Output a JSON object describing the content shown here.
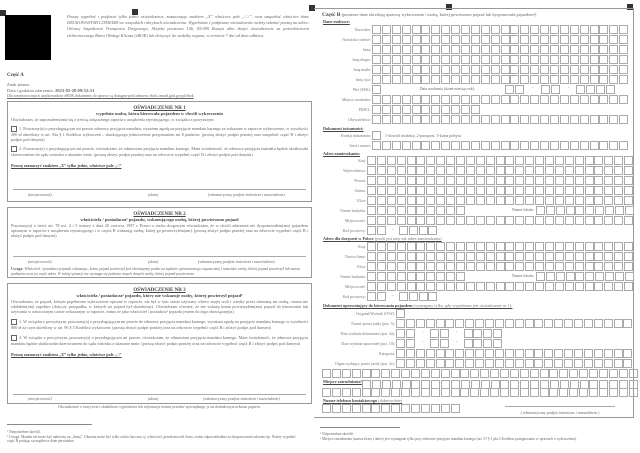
{
  "left": {
    "intro": "Proszę wypełnić i podpisać tylko jedno oświadczenie, zaznaczając znakiem „X” właściwe pole „□”, oraz uzupełnić właściwe dane DRUKOWANYMI LITERAMI we wszystkich rubrykach oświadczenia. Wypełnione i podpisane oświadczenie należy odesłać pocztą na adres: Główny Inspektorat Transportu Drogowego, Skrytka pocztowa 146, 05-090 Raszyn albo złożyć oświadczenie za pośrednictwem elektronicznego Biura Obsługi Klienta (eBOK) lub doręczyć do siedziby organu, w terminie 7 dni od dnia odbioru.",
    "part_a": "Część A",
    "znak_label": "Znak pisma:",
    "date_label": "Data i godzina zdarzenia:",
    "date_value": "2023-02-28 09:52:31",
    "ebok_note": "Dla zarejestrowanych użytkowników eBOK dokumenty do sprawy są dostępne pod adresem: ebok.canard.gitd.gov.pl/ebok",
    "s1": {
      "title": "OŚWIADCZENIE NR 1",
      "subtitle": "wypełnia osoba, która kierowała pojazdem w chwili wykroczenia",
      "intro": "Oświadczam, że zapoznałem(am) się z treścią załączonego raportu z urządzenia rejestrującego, w związku z powyższym:",
      "opt1": "1. Pouczony(a) o przysługującym mi prawie odmowy przyjęcia mandatu, wyrażam zgodę na przyjęcie mandatu karnego za wskazane w raporcie wykroczenie, w wysokości 200 zł określony w art. 92a § 1 Kodeksu wykroczeń – skutkującego jednocześnie przypisaniem mi 8 punktów. (proszę złożyć podpis poniżej oraz uzupełnić część B i złożyć podpis pod danymi)",
      "opt2": "2. Pouczony(a) o przysługującym mi prawie, oświadczam, że odmawiam przyjęcia mandatu karnego. Mam świadomość, że odmowa przyjęcia mandatu będzie skutkowała skierowaniem do sądu wniosku o ukaranie mnie. (proszę złożyć podpis poniżej oraz na odwrocie wypełnić część B i złożyć podpis pod danymi)",
      "mark_note": "Proszę zaznaczyć znakiem „X” tylko jedno, właściwe pole „□”",
      "sig": [
        "(miejscowość)",
        "(data)",
        "(własnoręczny podpis imieniem i nazwiskiem)"
      ]
    },
    "s2": {
      "title": "OŚWIADCZENIE NR 2",
      "subtitle": "właściciela / posiadacza¹ pojazdu, wskazującego osobę, której powierzono pojazd",
      "text": "Pouczony(a) o treści art. 78 ust. 4 i 5 ustawy z dnia 20 czerwca 1997 r. Prawo o ruchu drogowym oświadczam, że w chwili zdarzenia nie dysponowałem(am) pojazdem opisanym w raporcie z urządzenia rejestrującego i w części B wskazuję osobę, której go powierzyłem(am). (proszę złożyć podpis poniżej oraz na odwrocie wypełnić część B i złożyć podpis pod danymi)",
      "sig": [
        "(miejscowość)",
        "(data)",
        "(własnoręczny podpis imieniem i nazwiskiem)"
      ],
      "warning_label": "Uwaga:",
      "warning": "Właściciel / posiadacz pojazdu wskazując, komu pojazd powierzył jest obowiązany podać na żądanie uprawnionego organu imię i nazwisko osoby, której pojazd powierzył lub nazwę podmiotu oraz jej część adres. W takiej sytuacji nie wymaga się podania innych danych osoby, której pojazd powierzono."
    },
    "s3": {
      "title": "OŚWIADCZENIE NR 3",
      "subtitle": "właściciela / posiadacza¹ pojazdu, który nie wskazuje osoby, której powierzył pojazd²",
      "text": "Oświadczam, że pojazd, którym popełniono wykroczenie opisane w raporcie, nie był w tym czasie używany wbrew mojej woli i wiedzy przez nieznaną mi osobę, czemu nie zdołałem(am) zapobiec (dotyczy przypadku, w których na pojazd był skradziony). Oświadczam również, że nie wskażę komu powierzyłem(am) pojazd do kierowania lub używania w oznaczonym czasie wskazanym w raporcie, mimo że jako właściciel / posiadacz¹ pojazdu jestem do tego obowiązany(a).",
      "opt1": "1. W związku z powyższym, pouczony(a) o przysługującym mi prawie do odmowy przyjęcia mandatu karnego, wyrażam zgodę na przyjęcie mandatu karnego w wysokości 800 zł za czyn określony w art. 96 § 3 Kodeksu wykroczeń. (proszę złożyć podpis poniżej oraz na odwrocie wypełnić część B i złożyć podpis pod danymi)",
      "opt2": "2. W związku z powyższym, pouczony(a) o przysługującym mi prawie, oświadczam, że odmawiam przyjęcia mandatu karnego. Mam świadomość, że odmowa przyjęcia mandatu będzie skutkowała skierowaniem do sądu wniosku o ukaranie mnie. (proszę złożyć podpis poniżej oraz na odwrocie wypełnić część B i złożyć podpis pod danymi)",
      "mark_note": "Proszę zaznaczyć znakiem „X” tylko jedno, właściwe pole „□”",
      "sig": [
        "(miejscowość)",
        "(data)",
        "(własnoręczny podpis imieniem i nazwiskiem)"
      ]
    },
    "bottom_note": "Oświadczenie o innej treści, dodatkowe wyjaśnienia lub informacje można przesłać sporządzając je na dodatkowym arkuszu papieru.",
    "footnotes": [
      "¹ Niepotrzebne skreślić.",
      "² Uwaga: Mandat nie może być nałożony na „firmę”. Ukarana może być tylko osoba fizyczna, tj. właściciel, przedstawiciel firmy, osoba odpowiedzialna za dysponowanie taborem itp. Należy wypełnić część B podając szczegółowe dane personalne."
    ]
  },
  "right": {
    "part_b": "Część B",
    "part_b_note": "(poniższe dane określają sprawcę wykroczenia / osobę, której powierzono pojazd lub dysponowała pojazdem¹)",
    "personal": "Dane osobowe:",
    "rows1": [
      "Nazwisko:",
      "Nazwisko rodowe:",
      "Imię:",
      "Imię drugie:",
      "Imię matki:",
      "Imię ojca:",
      "Płeć (M/K):",
      "Miejsce urodzenia:",
      "PESEL:",
      "Obywatelstwo:"
    ],
    "birth_label": "Data urodzenia (dzień-miesiąc-rok):",
    "id_doc": "Dokument tożsamości:",
    "doc_type_label": "Rodzaj dokumentu:",
    "doc_type_hint": "1-dowód osobisty, 2-paszport, 3-karta pobytu",
    "serial_label": "Seria i numer:",
    "addr": "Adres zamieszkania:",
    "addr_rows": [
      "Kraj:",
      "Województwo:",
      "Powiat:",
      "Gmina:",
      "Ulica:",
      "Numer budynku:",
      "Miejscowość:",
      "Kod pocztowy:"
    ],
    "flat_label": "Numer lokalu:",
    "addr2": "Adres dla doręczeń w Polsce",
    "addr2_note": "(jeżeli jest inny niż adres zamieszkania)",
    "addr2_rows": [
      "Kraj:",
      "Nazwa firmy:",
      "Ulica:",
      "Numer budynku:",
      "Miejscowość:",
      "Kod pocztowy:"
    ],
    "license": "Dokument uprawniający do kierowania pojazdem",
    "license_note": "(wymagany tylko, gdy wypełniane jest oświadczenie nr 1):",
    "license_rows": [
      "Oryginał/Wtórnik (O/W):",
      "Numer prawa jazdy (poz. 5):",
      "Data wydania dokumentu (poz. 4a):",
      "Data wydania uprawnień (poz. 10):",
      "Kategoria:",
      "Organ wydający prawo jazdy (poz. 4c):"
    ],
    "employment": "Miejsce zatrudnienia²",
    "phone": "Numer telefonu kontaktowego",
    "phone_note": "(dobrowolnie)",
    "sig": "( własnoręczny podpis imieniem i nazwiskiem )",
    "footnotes": [
      "¹ Niepotrzebne skreślić.",
      "² Miejsce zatrudnienia (nazwa firmy i adres) jest wymagane tylko przy odmowie przyjęcia mandatu karnego (art. 57 § 1 pkt 2 Kodeksu postępowania w sprawach o wykroczenia)."
    ]
  }
}
